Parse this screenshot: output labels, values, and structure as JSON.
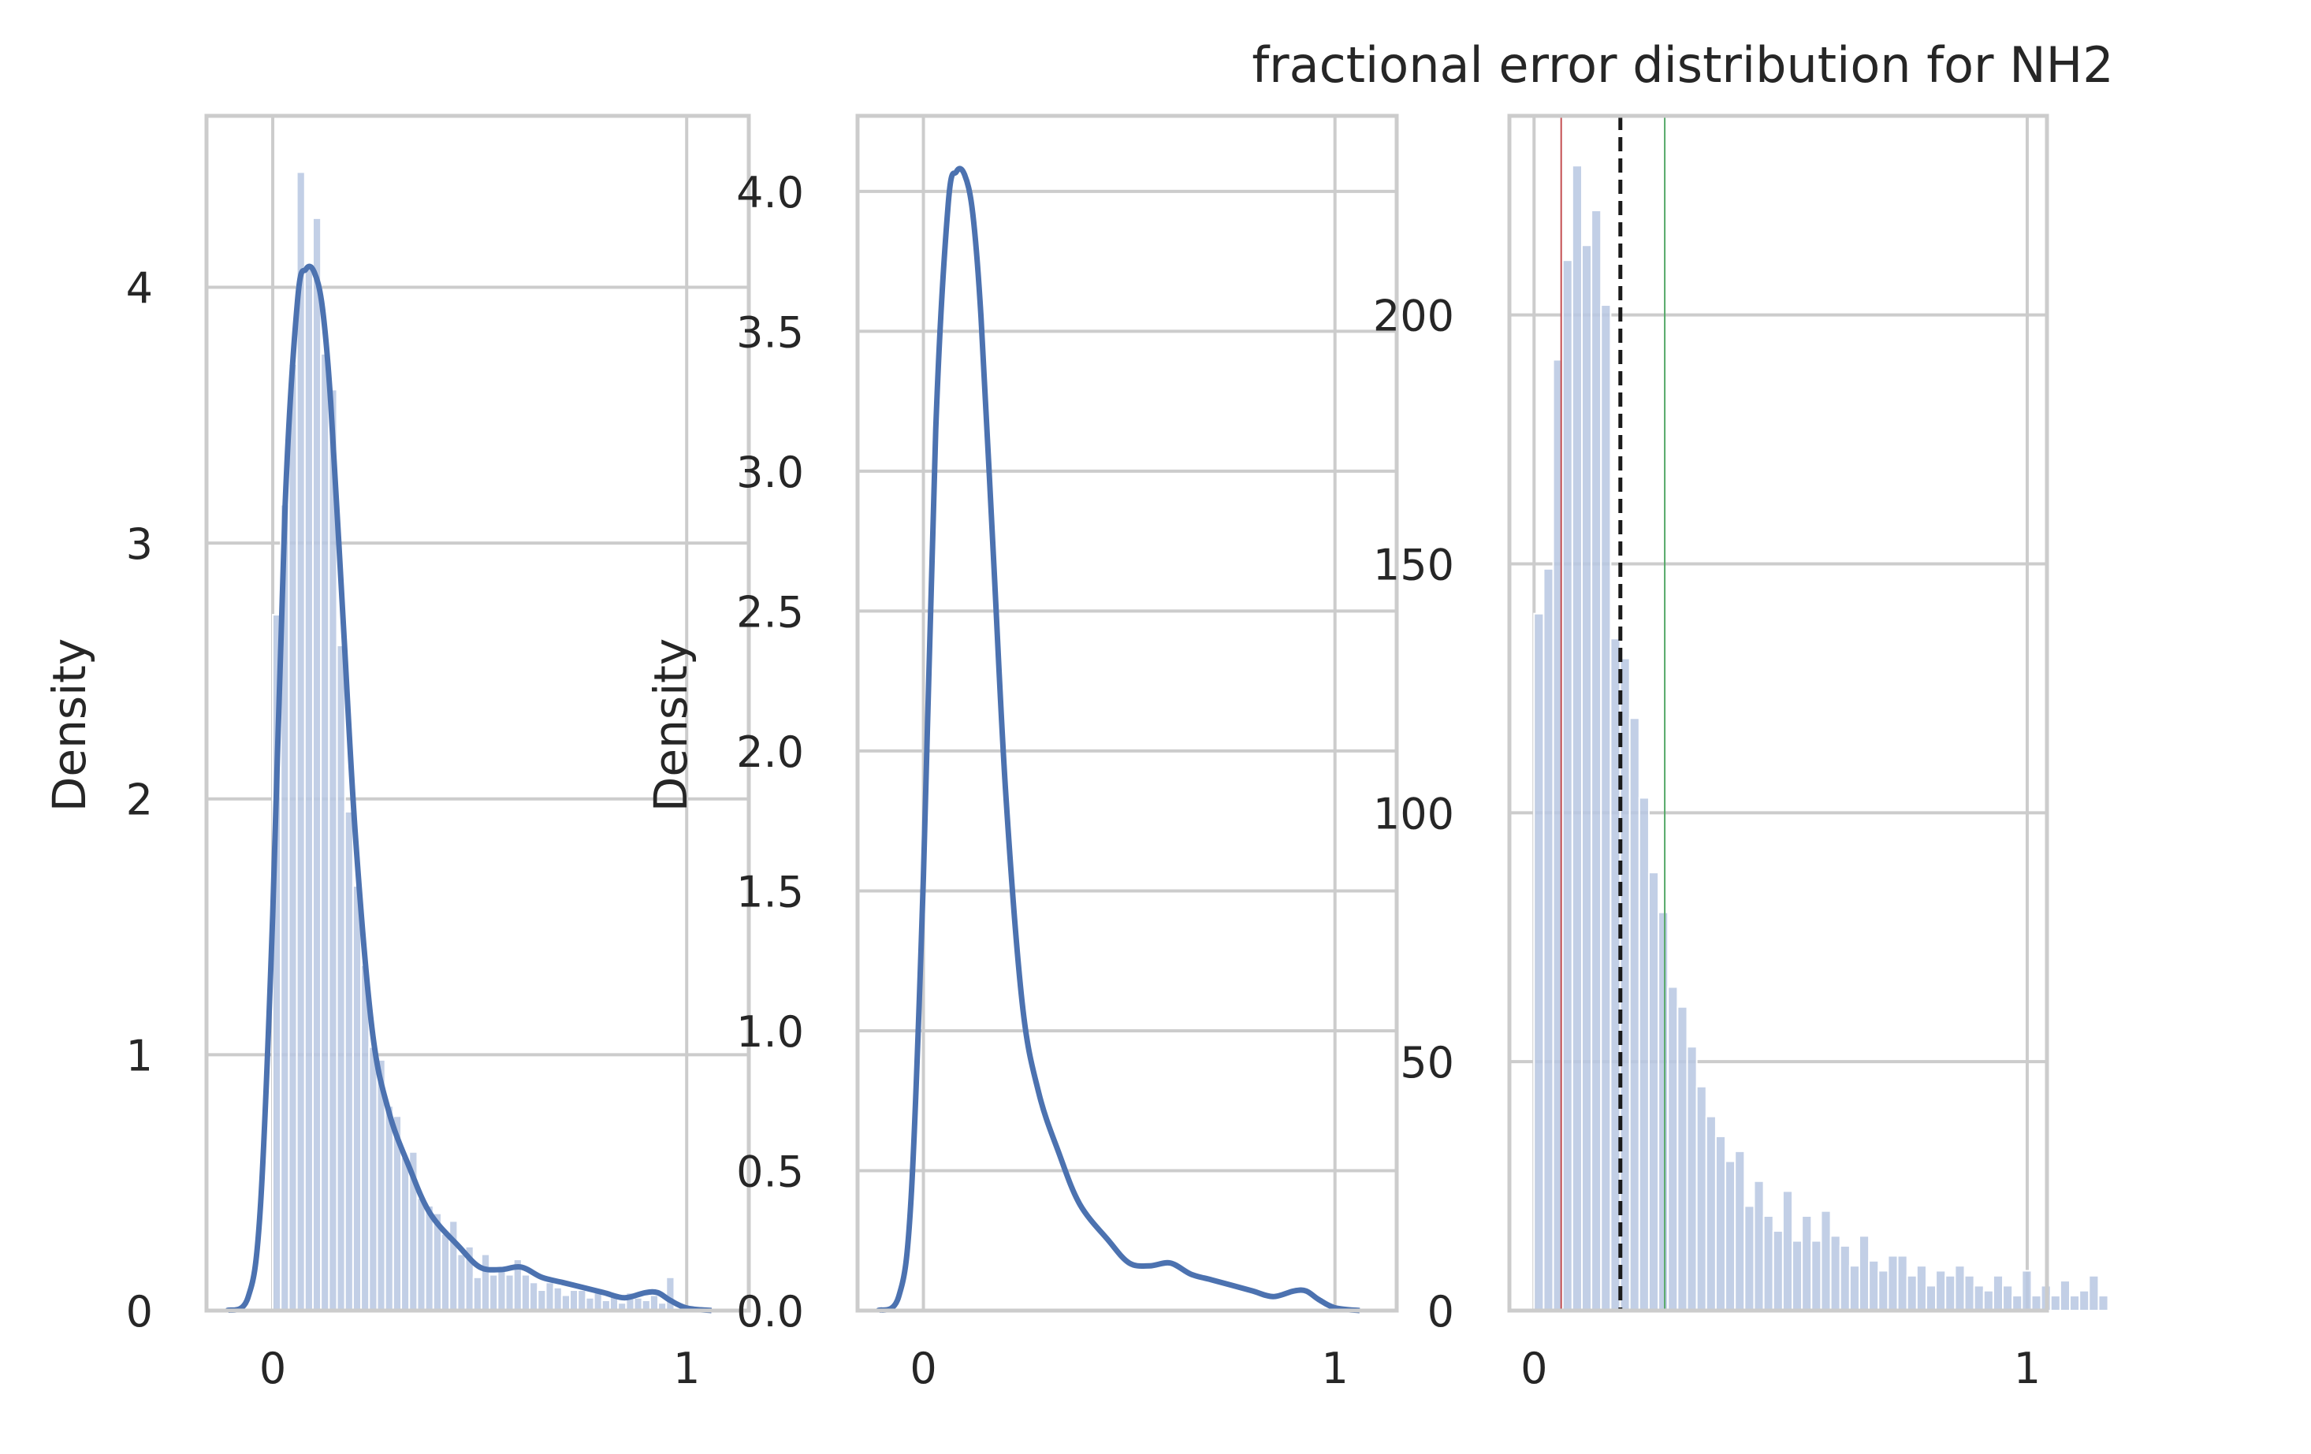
{
  "chart_data": [
    {
      "type": "histogram+kde",
      "title": "",
      "xlabel": "",
      "ylabel": "Density",
      "xlim": [
        -0.16,
        1.15
      ],
      "ylim": [
        0,
        4.67
      ],
      "xticks": [
        0,
        1
      ],
      "yticks": [
        0,
        1,
        2,
        3,
        4
      ],
      "grid": true,
      "histogram": {
        "bin_start": 0.0,
        "bin_width": 0.0194,
        "values": [
          2.72,
          3.15,
          3.7,
          4.45,
          4.08,
          4.27,
          3.74,
          3.6,
          2.6,
          1.95,
          1.66,
          1.35,
          1.03,
          0.98,
          0.8,
          0.76,
          0.6,
          0.62,
          0.44,
          0.41,
          0.38,
          0.3,
          0.35,
          0.22,
          0.25,
          0.13,
          0.22,
          0.14,
          0.17,
          0.14,
          0.2,
          0.14,
          0.11,
          0.08,
          0.11,
          0.09,
          0.06,
          0.08,
          0.08,
          0.05,
          0.07,
          0.04,
          0.06,
          0.03,
          0.07,
          0.05,
          0.04,
          0.06,
          0.03,
          0.13
        ]
      },
      "kde": {
        "x": [
          -0.11,
          -0.06,
          -0.03,
          0.0,
          0.03,
          0.06,
          0.08,
          0.1,
          0.12,
          0.14,
          0.17,
          0.2,
          0.24,
          0.28,
          0.33,
          0.38,
          0.45,
          0.5,
          0.55,
          0.6,
          0.65,
          0.7,
          0.75,
          0.8,
          0.85,
          0.9,
          0.93,
          0.96,
          1.0,
          1.06
        ],
        "y": [
          0.0,
          0.05,
          0.4,
          1.55,
          3.15,
          3.95,
          4.07,
          4.06,
          3.92,
          3.55,
          2.7,
          1.85,
          1.1,
          0.78,
          0.56,
          0.38,
          0.25,
          0.17,
          0.16,
          0.17,
          0.13,
          0.11,
          0.09,
          0.07,
          0.05,
          0.07,
          0.07,
          0.04,
          0.01,
          0.0
        ]
      },
      "colors": {
        "kde": "#4c72b0",
        "hist": "#b7c7e2"
      }
    },
    {
      "type": "line",
      "title": "",
      "xlabel": "",
      "ylabel": "Density",
      "xlim": [
        -0.16,
        1.15
      ],
      "ylim": [
        0,
        4.27
      ],
      "xticks": [
        0,
        1
      ],
      "yticks": [
        0.0,
        0.5,
        1.0,
        1.5,
        2.0,
        2.5,
        3.0,
        3.5,
        4.0
      ],
      "ytick_labels": [
        "0.0",
        "0.5",
        "1.0",
        "1.5",
        "2.0",
        "2.5",
        "3.0",
        "3.5",
        "4.0"
      ],
      "grid": true,
      "kde": {
        "x": [
          -0.11,
          -0.06,
          -0.03,
          0.0,
          0.03,
          0.06,
          0.08,
          0.1,
          0.12,
          0.14,
          0.17,
          0.2,
          0.24,
          0.28,
          0.33,
          0.38,
          0.45,
          0.5,
          0.55,
          0.6,
          0.65,
          0.7,
          0.75,
          0.8,
          0.85,
          0.9,
          0.93,
          0.96,
          1.0,
          1.06
        ],
        "y": [
          0.0,
          0.05,
          0.4,
          1.55,
          3.15,
          3.95,
          4.07,
          4.06,
          3.92,
          3.55,
          2.7,
          1.85,
          1.1,
          0.78,
          0.56,
          0.38,
          0.25,
          0.17,
          0.16,
          0.17,
          0.13,
          0.11,
          0.09,
          0.07,
          0.05,
          0.07,
          0.07,
          0.04,
          0.01,
          0.0
        ]
      },
      "colors": {
        "kde": "#4c72b0"
      }
    },
    {
      "type": "bar",
      "title": "fractional error distribution for NH2",
      "xlabel": "",
      "ylabel": "",
      "xlim": [
        -0.05,
        1.04
      ],
      "ylim": [
        0,
        240
      ],
      "xticks": [
        0,
        1
      ],
      "yticks": [
        0,
        50,
        100,
        150,
        200
      ],
      "grid": true,
      "histogram": {
        "bin_start": 0.0,
        "bin_width": 0.0194,
        "values": [
          140,
          149,
          191,
          211,
          230,
          214,
          221,
          202,
          135,
          131,
          119,
          103,
          88,
          80,
          65,
          61,
          53,
          45,
          39,
          35,
          30,
          32,
          21,
          26,
          19,
          16,
          24,
          14,
          19,
          14,
          20,
          15,
          13,
          9,
          15,
          10,
          8,
          11,
          11,
          7,
          9,
          5,
          8,
          7,
          9,
          7,
          5,
          4,
          7,
          5,
          3,
          8,
          3,
          5,
          3,
          6,
          3,
          4,
          7,
          3
        ]
      },
      "vlines": [
        {
          "name": "red",
          "x": 0.055,
          "style": "solid",
          "color": "#c44e52"
        },
        {
          "name": "mean",
          "x": 0.175,
          "style": "dashed",
          "color": "#1a1a1a"
        },
        {
          "name": "green",
          "x": 0.265,
          "style": "solid",
          "color": "#55a868"
        }
      ],
      "colors": {
        "hist": "#b7c7e2"
      }
    }
  ]
}
